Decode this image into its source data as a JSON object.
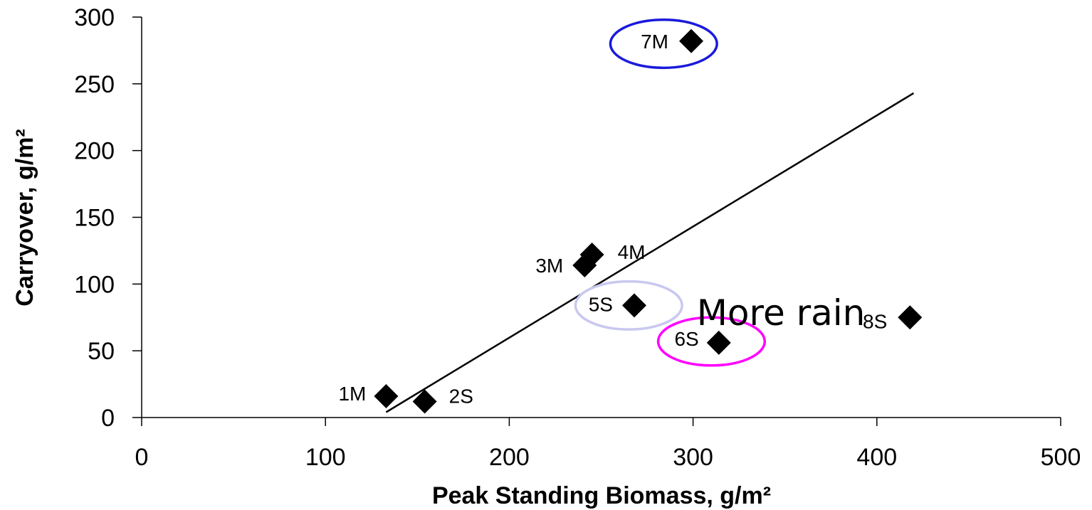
{
  "chart_data": {
    "type": "scatter",
    "xlabel": "Peak Standing Biomass, g/m²",
    "ylabel": "Carryover, g/m²",
    "xlim": [
      0,
      500
    ],
    "ylim": [
      0,
      300
    ],
    "x_ticks": [
      "0",
      "100",
      "200",
      "300",
      "400",
      "500"
    ],
    "y_ticks": [
      "0",
      "50",
      "100",
      "150",
      "200",
      "250",
      "300"
    ],
    "grid": false,
    "legend": "none",
    "marker": "diamond",
    "marker_color": "#000000",
    "points": [
      {
        "label": "1M",
        "x": 133,
        "y": 16
      },
      {
        "label": "2S",
        "x": 154,
        "y": 12
      },
      {
        "label": "3M",
        "x": 241,
        "y": 114
      },
      {
        "label": "4M",
        "x": 245,
        "y": 122
      },
      {
        "label": "5S",
        "x": 268,
        "y": 84
      },
      {
        "label": "6S",
        "x": 314,
        "y": 56
      },
      {
        "label": "7M",
        "x": 299,
        "y": 282
      },
      {
        "label": "8S",
        "x": 418,
        "y": 75
      }
    ],
    "trendline": {
      "x": [
        133,
        420
      ],
      "y": [
        4,
        243
      ],
      "color": "#000000"
    },
    "ellipses": [
      {
        "cx": 284,
        "cy": 280,
        "rx": 29,
        "ry": 18,
        "color": "#1a1adc"
      },
      {
        "cx": 265,
        "cy": 84,
        "rx": 29,
        "ry": 18,
        "color": "#c8c8f0"
      },
      {
        "cx": 310,
        "cy": 57,
        "rx": 29,
        "ry": 18,
        "color": "#ff00ff"
      }
    ],
    "annotation": {
      "text": "More rain",
      "x": 302,
      "y": 82
    }
  }
}
